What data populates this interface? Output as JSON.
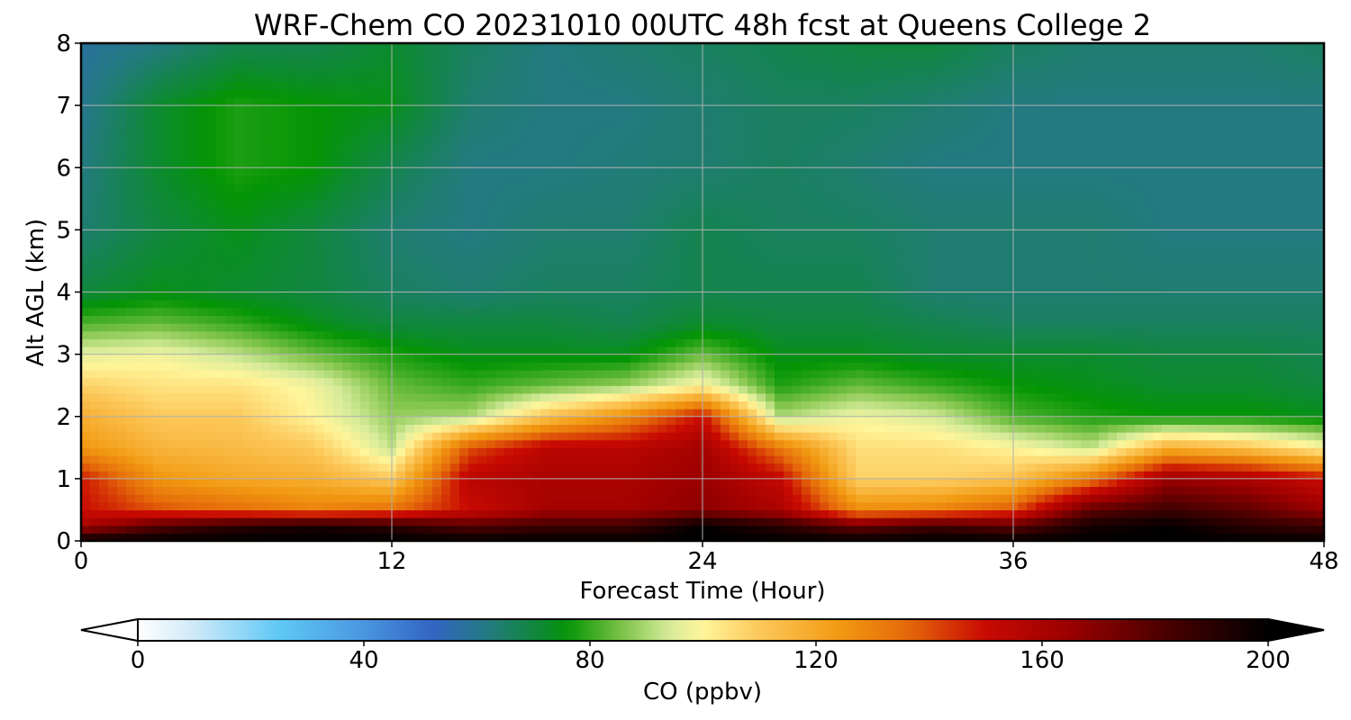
{
  "chart_data": {
    "type": "heatmap",
    "subtype": "filled-contour time-height cross-section",
    "title": "WRF-Chem CO  20231010 00UTC 48h fcst at Queens College 2",
    "xlabel": "Forecast Time (Hour)",
    "ylabel": "Alt AGL (km)",
    "xlim": [
      0,
      48
    ],
    "ylim": [
      0,
      8
    ],
    "x_ticks": [
      0,
      12,
      24,
      36,
      48
    ],
    "y_ticks": [
      0,
      1,
      2,
      3,
      4,
      5,
      6,
      7,
      8
    ],
    "grid": true,
    "colorbar": {
      "label": "CO  (ppbv)",
      "orientation": "horizontal",
      "placement": "bottom",
      "range": [
        0,
        200
      ],
      "ticks": [
        0,
        40,
        80,
        120,
        160,
        200
      ],
      "extend": "both",
      "stops": [
        {
          "value": 0,
          "color": "#ffffff"
        },
        {
          "value": 10,
          "color": "#cfe9f8"
        },
        {
          "value": 25,
          "color": "#5ec8f5"
        },
        {
          "value": 40,
          "color": "#4a97e0"
        },
        {
          "value": 52,
          "color": "#3264c4"
        },
        {
          "value": 62,
          "color": "#237a80"
        },
        {
          "value": 72,
          "color": "#0c8a2e"
        },
        {
          "value": 76,
          "color": "#049504"
        },
        {
          "value": 86,
          "color": "#80c44a"
        },
        {
          "value": 94,
          "color": "#d6eb9a"
        },
        {
          "value": 100,
          "color": "#fff59a"
        },
        {
          "value": 110,
          "color": "#fcc85a"
        },
        {
          "value": 124,
          "color": "#f29a12"
        },
        {
          "value": 136,
          "color": "#e56a0a"
        },
        {
          "value": 150,
          "color": "#c80a02"
        },
        {
          "value": 165,
          "color": "#9a0000"
        },
        {
          "value": 182,
          "color": "#4a0000"
        },
        {
          "value": 200,
          "color": "#000000"
        }
      ]
    },
    "times": [
      0,
      3,
      6,
      9,
      12,
      15,
      18,
      21,
      24,
      27,
      30,
      33,
      36,
      39,
      42,
      45,
      48
    ],
    "heights_km": [
      0,
      0.25,
      0.5,
      1,
      1.5,
      2,
      2.5,
      3,
      3.5,
      4,
      5,
      6,
      7,
      8
    ],
    "values_ppbv": [
      [
        200,
        200,
        200,
        200,
        200,
        200,
        200,
        200,
        200,
        200,
        200,
        200,
        200,
        200,
        200,
        200,
        200
      ],
      [
        160,
        180,
        190,
        195,
        190,
        180,
        185,
        185,
        200,
        190,
        175,
        185,
        178,
        195,
        200,
        190,
        185
      ],
      [
        150,
        140,
        135,
        130,
        135,
        150,
        162,
        162,
        168,
        160,
        128,
        130,
        140,
        178,
        185,
        178,
        165
      ],
      [
        148,
        125,
        120,
        118,
        110,
        155,
        160,
        160,
        165,
        152,
        108,
        108,
        112,
        132,
        165,
        160,
        150
      ],
      [
        125,
        116,
        114,
        110,
        92,
        140,
        155,
        155,
        162,
        132,
        105,
        105,
        100,
        92,
        118,
        112,
        100
      ],
      [
        118,
        110,
        110,
        100,
        88,
        90,
        112,
        128,
        150,
        90,
        98,
        94,
        82,
        78,
        76,
        76,
        74
      ],
      [
        108,
        104,
        104,
        98,
        84,
        80,
        84,
        88,
        100,
        78,
        84,
        80,
        76,
        74,
        72,
        72,
        70
      ],
      [
        96,
        98,
        92,
        84,
        78,
        74,
        74,
        74,
        84,
        74,
        74,
        72,
        72,
        72,
        70,
        70,
        68
      ],
      [
        82,
        84,
        80,
        74,
        70,
        70,
        70,
        68,
        72,
        70,
        70,
        68,
        66,
        66,
        66,
        66,
        66
      ],
      [
        70,
        74,
        72,
        70,
        66,
        64,
        66,
        66,
        68,
        68,
        68,
        64,
        64,
        64,
        64,
        64,
        64
      ],
      [
        64,
        70,
        74,
        70,
        64,
        62,
        64,
        64,
        68,
        66,
        66,
        64,
        64,
        64,
        62,
        62,
        62
      ],
      [
        62,
        72,
        78,
        76,
        68,
        62,
        62,
        63,
        64,
        66,
        64,
        62,
        62,
        62,
        62,
        62,
        62
      ],
      [
        60,
        72,
        78,
        76,
        74,
        64,
        62,
        62,
        64,
        66,
        66,
        64,
        62,
        62,
        62,
        62,
        62
      ],
      [
        58,
        62,
        68,
        68,
        72,
        66,
        62,
        64,
        66,
        68,
        70,
        70,
        66,
        64,
        64,
        64,
        66
      ]
    ]
  }
}
